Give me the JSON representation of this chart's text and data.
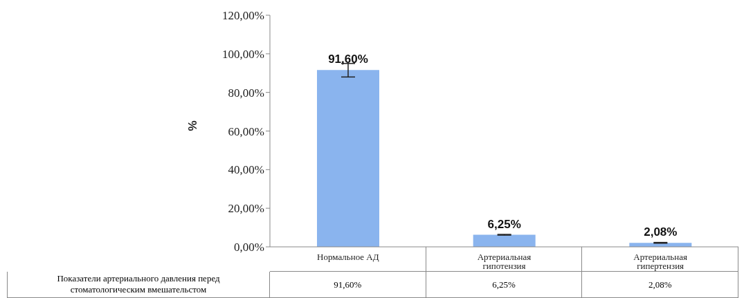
{
  "chart_data": {
    "type": "bar",
    "ylabel": "%",
    "categories": [
      "Нормальное АД",
      "Артериальная гипотензия",
      "Артериальная гипертензия"
    ],
    "series": [
      {
        "name": "Показатели артериального давления перед стоматологическим вмешательстом",
        "color": "#8ab4ee",
        "values": [
          91.6,
          6.25,
          2.08
        ],
        "errors": [
          [
            88,
            95
          ],
          0.2,
          0.2
        ],
        "value_labels": [
          "91,60%",
          "6,25%",
          "2,08%"
        ]
      }
    ],
    "ylim": [
      0,
      120
    ],
    "yticks": [
      {
        "value": 0,
        "label": "0,00%"
      },
      {
        "value": 20,
        "label": "20,00%"
      },
      {
        "value": 40,
        "label": "40,00%"
      },
      {
        "value": 60,
        "label": "60,00%"
      },
      {
        "value": 80,
        "label": "80,00%"
      },
      {
        "value": 100,
        "label": "100,00%"
      },
      {
        "value": 120,
        "label": "120,00%"
      }
    ],
    "grid": false,
    "legend": false
  }
}
